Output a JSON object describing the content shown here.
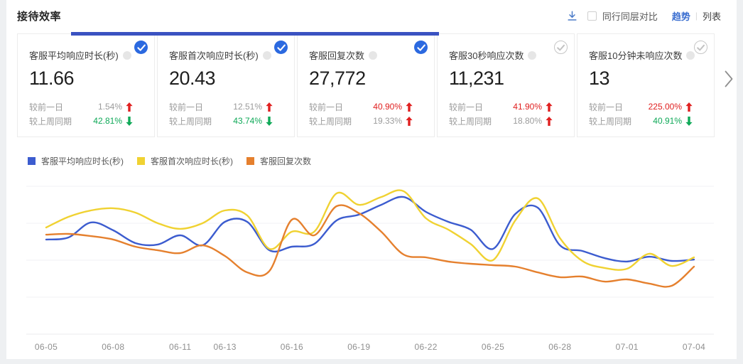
{
  "header": {
    "title": "接待效率",
    "compare_label": "同行同层对比",
    "compare_checked": false,
    "tab_divider": "|",
    "tabs": [
      {
        "label": "趋势",
        "active": true
      },
      {
        "label": "列表",
        "active": false
      }
    ]
  },
  "colors": {
    "accent_blue": "#2b69e0",
    "indicator_bar_blue": "#3a52c1",
    "link_blue": "#3a6ed0",
    "trend_red": "#e02020",
    "trend_green": "#0fa958",
    "muted_text": "#9b9b9b"
  },
  "cards": [
    {
      "title": "客服平均响应时长(秒)",
      "value": "11.66",
      "selected": true,
      "rows": [
        {
          "label": "较前一日",
          "value": "1.54%",
          "value_color": "gray",
          "arrow": "up",
          "arrow_color": "red"
        },
        {
          "label": "较上周同期",
          "value": "42.81%",
          "value_color": "green",
          "arrow": "down",
          "arrow_color": "green"
        }
      ]
    },
    {
      "title": "客服首次响应时长(秒)",
      "value": "20.43",
      "selected": true,
      "rows": [
        {
          "label": "较前一日",
          "value": "12.51%",
          "value_color": "gray",
          "arrow": "up",
          "arrow_color": "red"
        },
        {
          "label": "较上周同期",
          "value": "43.74%",
          "value_color": "green",
          "arrow": "down",
          "arrow_color": "green"
        }
      ]
    },
    {
      "title": "客服回复次数",
      "value": "27,772",
      "selected": true,
      "rows": [
        {
          "label": "较前一日",
          "value": "40.90%",
          "value_color": "red",
          "arrow": "up",
          "arrow_color": "red"
        },
        {
          "label": "较上周同期",
          "value": "19.33%",
          "value_color": "gray",
          "arrow": "up",
          "arrow_color": "red"
        }
      ]
    },
    {
      "title": "客服30秒响应次数",
      "value": "11,231",
      "selected": false,
      "rows": [
        {
          "label": "较前一日",
          "value": "41.90%",
          "value_color": "red",
          "arrow": "up",
          "arrow_color": "red"
        },
        {
          "label": "较上周同期",
          "value": "18.80%",
          "value_color": "gray",
          "arrow": "up",
          "arrow_color": "red"
        }
      ]
    },
    {
      "title": "客服10分钟未响应次数",
      "value": "13",
      "selected": false,
      "rows": [
        {
          "label": "较前一日",
          "value": "225.00%",
          "value_color": "red",
          "arrow": "up",
          "arrow_color": "red"
        },
        {
          "label": "较上周同期",
          "value": "40.91%",
          "value_color": "green",
          "arrow": "down",
          "arrow_color": "green"
        }
      ]
    }
  ],
  "chart_data": {
    "type": "line",
    "title": "",
    "xlabel": "",
    "ylabel": "",
    "y_axis_labels_visible": false,
    "value_scale": "relative 0-100 (y axis unlabeled in source)",
    "grid": "horizontal",
    "legend_position": "top-left",
    "x_range_days": 30,
    "x_ticks": [
      {
        "label": "06-05",
        "day": 0
      },
      {
        "label": "06-08",
        "day": 3
      },
      {
        "label": "06-11",
        "day": 6
      },
      {
        "label": "06-13",
        "day": 8
      },
      {
        "label": "06-16",
        "day": 11
      },
      {
        "label": "06-19",
        "day": 14
      },
      {
        "label": "06-22",
        "day": 17
      },
      {
        "label": "06-25",
        "day": 20
      },
      {
        "label": "06-28",
        "day": 23
      },
      {
        "label": "07-01",
        "day": 26
      },
      {
        "label": "07-04",
        "day": 29
      }
    ],
    "series": [
      {
        "name": "客服平均响应时长(秒)",
        "color": "#3c5ccf",
        "values": [
          60.5,
          61.8,
          71.4,
          66.4,
          58.2,
          57.3,
          63.2,
          56.8,
          71.8,
          71.8,
          53.6,
          55.9,
          57.7,
          72.7,
          76.4,
          82.7,
          87.7,
          78.2,
          71.8,
          66.8,
          54.5,
          76.8,
          80.9,
          56.8,
          53.2,
          48.6,
          46.4,
          49.5,
          46.8,
          47.7
        ]
      },
      {
        "name": "客服首次响应时长(秒)",
        "color": "#f0d232",
        "values": [
          68.2,
          75.0,
          79.1,
          80.5,
          77.7,
          70.9,
          67.3,
          70.9,
          79.1,
          75.9,
          54.5,
          65.5,
          65.5,
          90.0,
          82.7,
          87.7,
          91.4,
          74.1,
          66.8,
          57.7,
          47.3,
          72.7,
          86.8,
          61.4,
          46.8,
          42.3,
          41.8,
          51.4,
          43.6,
          49.1
        ]
      },
      {
        "name": "客服回复次数",
        "color": "#e5802e",
        "values": [
          63.6,
          64.1,
          62.7,
          60.5,
          55.9,
          53.6,
          51.8,
          56.8,
          50.0,
          39.5,
          40.5,
          73.2,
          63.2,
          81.8,
          77.3,
          65.5,
          50.9,
          49.1,
          46.4,
          45.0,
          44.1,
          43.2,
          39.5,
          36.4,
          36.8,
          33.6,
          35.0,
          32.3,
          30.9,
          43.2
        ]
      }
    ]
  }
}
